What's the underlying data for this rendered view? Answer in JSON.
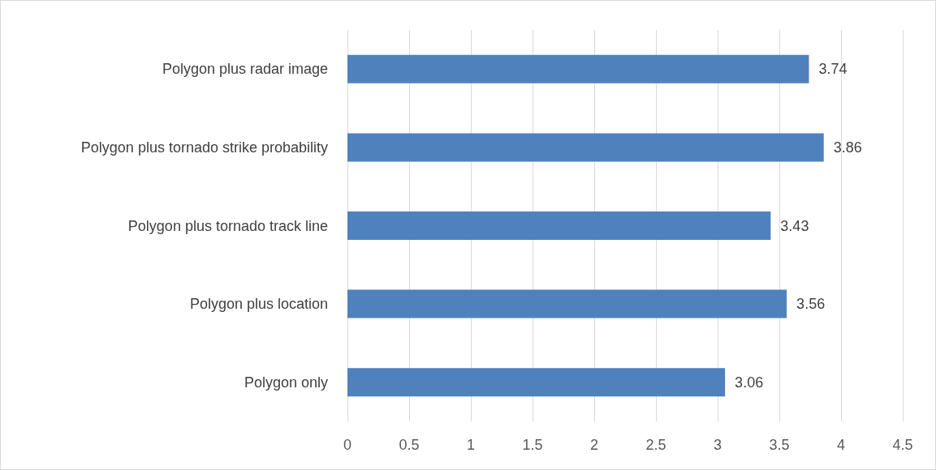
{
  "chart_data": {
    "type": "bar",
    "orientation": "horizontal",
    "categories": [
      "Polygon plus radar image",
      "Polygon plus tornado strike probability",
      "Polygon plus tornado track line",
      "Polygon plus location",
      "Polygon only"
    ],
    "values": [
      3.74,
      3.86,
      3.43,
      3.56,
      3.06
    ],
    "color": "#4f81bd",
    "xlim": [
      0,
      4.5
    ],
    "xticks": [
      0,
      0.5,
      1,
      1.5,
      2,
      2.5,
      3,
      3.5,
      4,
      4.5
    ],
    "grid": "x",
    "data_labels": true
  }
}
